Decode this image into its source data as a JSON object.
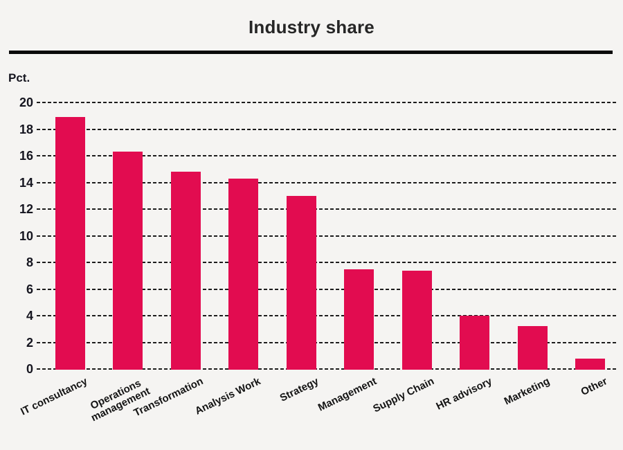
{
  "title": "Industry share",
  "chart_data": {
    "type": "bar",
    "title": "Industry share",
    "ylabel": "Pct.",
    "xlabel": "",
    "categories": [
      "IT consultancy",
      "Operations\nmanagement",
      "Transformation",
      "Analysis Work",
      "Strategy",
      "Management",
      "Supply Chain",
      "HR advisory",
      "Marketing",
      "Other"
    ],
    "values": [
      18.9,
      16.3,
      14.8,
      14.3,
      13.0,
      7.5,
      7.4,
      4.0,
      3.2,
      0.8
    ],
    "ylim": [
      0,
      20
    ],
    "yticks": [
      0,
      2,
      4,
      6,
      8,
      10,
      12,
      14,
      16,
      18,
      20
    ],
    "grid": "horizontal-dashed",
    "legend": "none",
    "x_tick_rotation_deg": -26,
    "bar_color": "#e20c50",
    "background_color": "#f5f4f2",
    "text_color": "#15151f",
    "gridline_color": "#1c1c1c"
  }
}
